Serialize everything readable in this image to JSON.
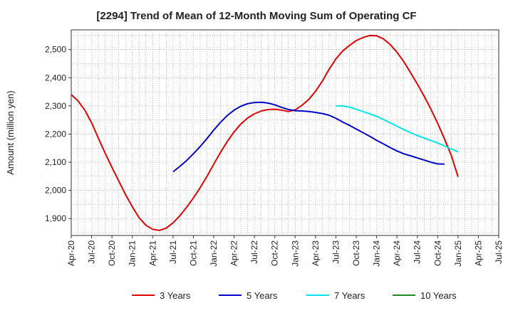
{
  "chart_data": {
    "type": "line",
    "title": "[2294]  Trend of Mean of 12-Month Moving Sum of Operating CF",
    "xlabel": "",
    "ylabel": "Amount (million yen)",
    "ylim": [
      1840,
      2570
    ],
    "yticks": [
      1900,
      2000,
      2100,
      2200,
      2300,
      2400,
      2500
    ],
    "ytick_labels": [
      "1,900",
      "2,000",
      "2,100",
      "2,200",
      "2,300",
      "2,400",
      "2,500"
    ],
    "xticks": [
      "Apr-20",
      "Jul-20",
      "Oct-20",
      "Jan-21",
      "Apr-21",
      "Jul-21",
      "Oct-21",
      "Jan-22",
      "Apr-22",
      "Jul-22",
      "Oct-22",
      "Jan-23",
      "Apr-23",
      "Jul-23",
      "Oct-23",
      "Jan-24",
      "Apr-24",
      "Jul-24",
      "Oct-24",
      "Jan-25",
      "Apr-25",
      "Jul-25"
    ],
    "x_start": "Apr-20",
    "grid": true,
    "legend_position": "bottom",
    "series": [
      {
        "name": "3 Years",
        "color": "#e00000",
        "start_index": 0,
        "values": [
          2340,
          2318,
          2285,
          2240,
          2185,
          2132,
          2082,
          2033,
          1985,
          1942,
          1903,
          1876,
          1862,
          1858,
          1866,
          1885,
          1910,
          1940,
          1973,
          2010,
          2050,
          2093,
          2135,
          2174,
          2208,
          2236,
          2257,
          2272,
          2282,
          2287,
          2288,
          2285,
          2280,
          2286,
          2302,
          2323,
          2352,
          2388,
          2430,
          2467,
          2495,
          2515,
          2532,
          2543,
          2550,
          2549,
          2538,
          2518,
          2491,
          2457,
          2418,
          2378,
          2335,
          2288,
          2238,
          2183,
          2125,
          2048
        ]
      },
      {
        "name": "5 Years",
        "color": "#0000cc",
        "start_index": 15,
        "values": [
          2066,
          2085,
          2106,
          2130,
          2156,
          2184,
          2214,
          2242,
          2266,
          2285,
          2299,
          2308,
          2312,
          2313,
          2310,
          2304,
          2295,
          2287,
          2283,
          2282,
          2280,
          2277,
          2273,
          2267,
          2256,
          2243,
          2231,
          2218,
          2205,
          2192,
          2178,
          2165,
          2152,
          2140,
          2130,
          2123,
          2115,
          2108,
          2100,
          2094,
          2093
        ]
      },
      {
        "name": "7 Years",
        "color": "#00e5ee",
        "start_index": 39,
        "values": [
          2300,
          2300,
          2296,
          2288,
          2280,
          2272,
          2263,
          2252,
          2240,
          2228,
          2216,
          2205,
          2195,
          2186,
          2177,
          2168,
          2158,
          2147,
          2137
        ]
      },
      {
        "name": "10 Years",
        "color": "#228b22",
        "start_index": 0,
        "values": []
      }
    ]
  }
}
